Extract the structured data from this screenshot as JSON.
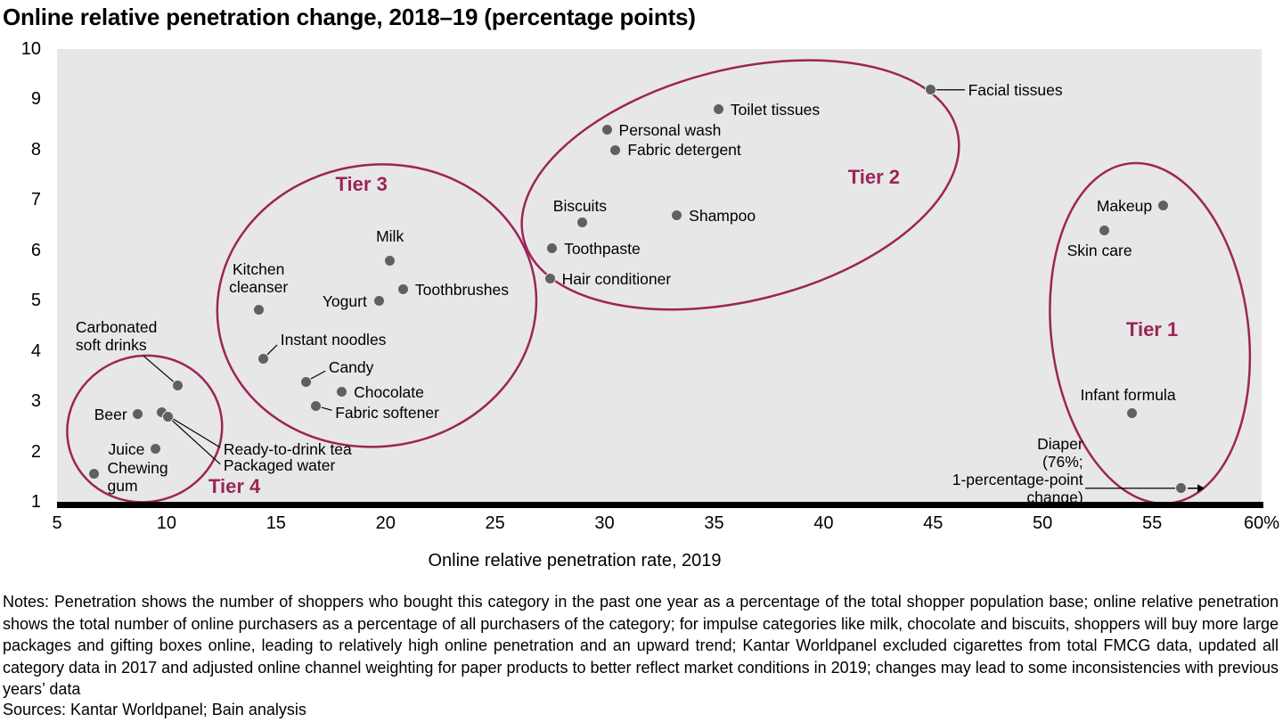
{
  "colors": {
    "accent": "#9d2458",
    "dot": "#606060",
    "plot_bg": "#e7e7e8",
    "axis": "#000000",
    "leader": "#000000"
  },
  "notes": "Notes: Penetration shows the number of shoppers who bought this category in the past one year as a percentage of the total shopper population base; online relative penetration shows the total number of online purchasers as a percentage of all purchasers of the category; for impulse categories like milk, chocolate and biscuits, shoppers will buy more large packages and gifting boxes online, leading to relatively high online penetration and an upward trend; Kantar Worldpanel excluded cigarettes from total FMCG data, updated all category data in 2017 and adjusted online channel weighting for paper products to better reflect market conditions in 2019; changes may lead to some inconsistencies with previous years’ data",
  "sources": "Sources: Kantar Worldpanel; Bain analysis",
  "chart_data": {
    "type": "scatter",
    "title": "Online relative penetration change, 2018–19 (percentage points)",
    "xlabel": "Online relative penetration rate, 2019",
    "ylabel": "",
    "xlim": [
      5,
      60
    ],
    "ylim": [
      1,
      10
    ],
    "grid": false,
    "legend": "none",
    "xticks": [
      {
        "v": 5,
        "label": "5"
      },
      {
        "v": 10,
        "label": "10"
      },
      {
        "v": 15,
        "label": "15"
      },
      {
        "v": 20,
        "label": "20"
      },
      {
        "v": 25,
        "label": "25"
      },
      {
        "v": 30,
        "label": "30"
      },
      {
        "v": 35,
        "label": "35"
      },
      {
        "v": 40,
        "label": "40"
      },
      {
        "v": 45,
        "label": "45"
      },
      {
        "v": 50,
        "label": "50"
      },
      {
        "v": 55,
        "label": "55"
      },
      {
        "v": 60,
        "label": "60%"
      }
    ],
    "yticks": [
      {
        "v": 1,
        "label": "1"
      },
      {
        "v": 2,
        "label": "2"
      },
      {
        "v": 3,
        "label": "3"
      },
      {
        "v": 4,
        "label": "4"
      },
      {
        "v": 5,
        "label": "5"
      },
      {
        "v": 6,
        "label": "6"
      },
      {
        "v": 7,
        "label": "7"
      },
      {
        "v": 8,
        "label": "8"
      },
      {
        "v": 9,
        "label": "9"
      },
      {
        "v": 10,
        "label": "10"
      }
    ],
    "points": [
      {
        "name": "Chewing gum",
        "x": 6.7,
        "y": 1.55,
        "label": {
          "x": 7.3,
          "y": 1.5,
          "anchor": "start",
          "wrap": 95
        }
      },
      {
        "name": "Beer",
        "x": 8.7,
        "y": 2.74,
        "label": {
          "x": 8.2,
          "y": 2.74,
          "anchor": "end"
        }
      },
      {
        "name": "Juice",
        "x": 9.5,
        "y": 2.05,
        "label": {
          "x": 9.0,
          "y": 2.05,
          "anchor": "end"
        }
      },
      {
        "name": "Ready-to-drink tea",
        "x": 9.8,
        "y": 2.78,
        "label": {
          "x": 12.6,
          "y": 2.05,
          "anchor": "start"
        },
        "leader_end": [
          12.45,
          2.08
        ]
      },
      {
        "name": "Packaged water",
        "x": 10.05,
        "y": 2.7,
        "label": {
          "x": 12.6,
          "y": 1.72,
          "anchor": "start"
        },
        "leader_end": [
          12.45,
          1.75
        ]
      },
      {
        "name": "Carbonated soft drinks",
        "x": 10.5,
        "y": 3.32,
        "label": {
          "x": 5.85,
          "y": 4.3,
          "anchor": "start",
          "wrap": 118
        },
        "leader_end": [
          8.95,
          3.9
        ]
      },
      {
        "name": "Kitchen cleanser",
        "x": 14.2,
        "y": 4.81,
        "label": {
          "x": 14.2,
          "y": 5.45,
          "anchor": "middle",
          "wrap": 90
        }
      },
      {
        "name": "Instant noodles",
        "x": 14.4,
        "y": 3.84,
        "label": {
          "x": 15.2,
          "y": 4.22,
          "anchor": "start"
        },
        "leader_end": [
          15.05,
          4.12
        ]
      },
      {
        "name": "Candy",
        "x": 16.35,
        "y": 3.39,
        "label": {
          "x": 17.4,
          "y": 3.67,
          "anchor": "start"
        },
        "leader_end": [
          17.25,
          3.6
        ]
      },
      {
        "name": "Fabric softener",
        "x": 16.8,
        "y": 2.91,
        "label": {
          "x": 17.7,
          "y": 2.77,
          "anchor": "start"
        },
        "leader_end": [
          17.55,
          2.82
        ]
      },
      {
        "name": "Chocolate",
        "x": 18.0,
        "y": 3.18,
        "label": {
          "x": 18.55,
          "y": 3.18,
          "anchor": "start"
        }
      },
      {
        "name": "Yogurt",
        "x": 19.7,
        "y": 4.99,
        "label": {
          "x": 19.15,
          "y": 4.99,
          "anchor": "end"
        }
      },
      {
        "name": "Milk",
        "x": 20.2,
        "y": 5.79,
        "label": {
          "x": 20.2,
          "y": 6.28,
          "anchor": "middle"
        }
      },
      {
        "name": "Toothbrushes",
        "x": 20.8,
        "y": 5.22,
        "label": {
          "x": 21.35,
          "y": 5.22,
          "anchor": "start"
        }
      },
      {
        "name": "Hair conditioner",
        "x": 27.5,
        "y": 5.43,
        "label": {
          "x": 28.05,
          "y": 5.43,
          "anchor": "start"
        }
      },
      {
        "name": "Toothpaste",
        "x": 27.6,
        "y": 6.04,
        "label": {
          "x": 28.15,
          "y": 6.04,
          "anchor": "start"
        }
      },
      {
        "name": "Biscuits",
        "x": 29.0,
        "y": 6.55,
        "label": {
          "x": 27.65,
          "y": 6.88,
          "anchor": "start"
        }
      },
      {
        "name": "Personal wash",
        "x": 30.1,
        "y": 8.39,
        "label": {
          "x": 30.65,
          "y": 8.39,
          "anchor": "start"
        }
      },
      {
        "name": "Fabric detergent",
        "x": 30.5,
        "y": 7.99,
        "label": {
          "x": 31.05,
          "y": 7.99,
          "anchor": "start"
        }
      },
      {
        "name": "Shampoo",
        "x": 33.3,
        "y": 6.69,
        "label": {
          "x": 33.85,
          "y": 6.69,
          "anchor": "start"
        }
      },
      {
        "name": "Toilet tissues",
        "x": 35.2,
        "y": 8.8,
        "label": {
          "x": 35.75,
          "y": 8.8,
          "anchor": "start"
        }
      },
      {
        "name": "Facial tissues",
        "x": 44.9,
        "y": 9.19,
        "label": {
          "x": 46.6,
          "y": 9.19,
          "anchor": "start"
        },
        "leader_end": [
          46.45,
          9.19
        ]
      },
      {
        "name": "Makeup",
        "x": 55.5,
        "y": 6.89,
        "label": {
          "x": 55.0,
          "y": 6.89,
          "anchor": "end"
        }
      },
      {
        "name": "Skin care",
        "x": 52.8,
        "y": 6.39,
        "label": {
          "x": 52.6,
          "y": 6.0,
          "anchor": "middle"
        }
      },
      {
        "name": "Infant formula",
        "x": 54.1,
        "y": 2.77,
        "label": {
          "x": 53.9,
          "y": 3.12,
          "anchor": "middle"
        }
      },
      {
        "name": "Diaper",
        "x": 56.3,
        "y": 1.27,
        "label": {
          "x": 51.85,
          "y": 1.62,
          "anchor": "end",
          "text": "Diaper\n(76%;\n1-percentage-point change)"
        },
        "leader_end": [
          51.95,
          1.27
        ],
        "arrow": true
      }
    ],
    "tiers": [
      {
        "label": "Tier 1",
        "cx": 54.9,
        "cy": 4.35,
        "rx": 4.5,
        "ry": 3.4,
        "rot": -7,
        "label_x": 55.0,
        "label_y": 4.42
      },
      {
        "label": "Tier 2",
        "cx": 36.2,
        "cy": 7.3,
        "rx": 10.2,
        "ry": 2.3,
        "rot": -14,
        "label_x": 42.3,
        "label_y": 7.45
      },
      {
        "label": "Tier 3",
        "cx": 19.6,
        "cy": 4.9,
        "rx": 7.3,
        "ry": 2.8,
        "rot": -8,
        "label_x": 18.9,
        "label_y": 7.3
      },
      {
        "label": "Tier 4",
        "cx": 9.0,
        "cy": 2.45,
        "rx": 3.55,
        "ry": 1.45,
        "rot": -15,
        "label_x": 13.1,
        "label_y": 1.3
      }
    ]
  }
}
